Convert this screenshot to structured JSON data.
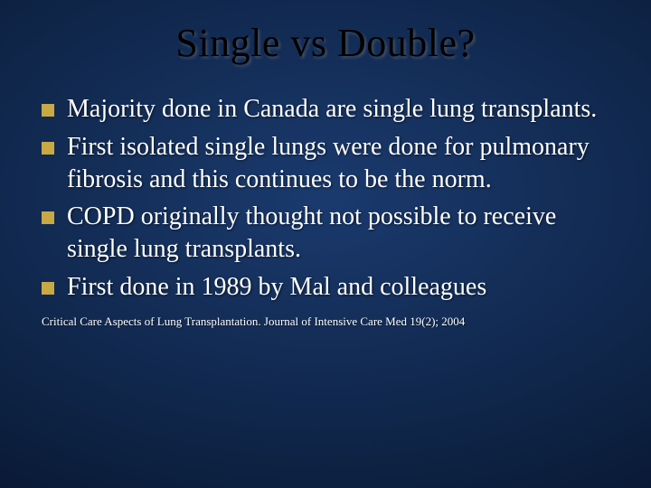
{
  "slide": {
    "title": "Single vs Double?",
    "bullets": [
      "Majority done in Canada are single lung transplants.",
      "First isolated single lungs were done for pulmonary fibrosis and this continues to be the norm.",
      "COPD originally thought not possible to receive single lung transplants.",
      "First done in 1989 by Mal and colleagues"
    ],
    "citation": "Critical Care Aspects of Lung Transplantation. Journal of Intensive Care Med 19(2); 2004"
  },
  "style": {
    "background_gradient": [
      "#1a3a6e",
      "#0f2548",
      "#051128"
    ],
    "title_color": "#000000",
    "title_fontsize": 44,
    "bullet_marker_color": "#c9a943",
    "bullet_marker_size": 14,
    "body_text_color": "#ffffff",
    "body_fontsize": 28,
    "citation_fontsize": 13,
    "font_family": "Times New Roman"
  }
}
